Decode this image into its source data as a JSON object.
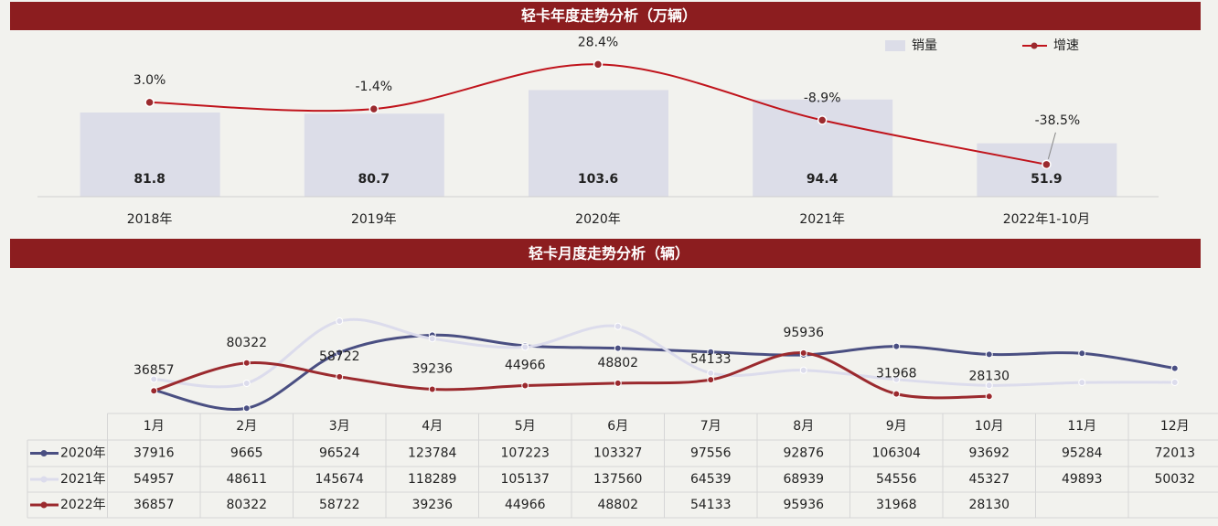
{
  "chart_data": [
    {
      "type": "bar",
      "title": "轻卡年度走势分析（万辆）",
      "categories": [
        "2018年",
        "2019年",
        "2020年",
        "2021年",
        "2022年1-10月"
      ],
      "series": [
        {
          "name": "销量",
          "type": "bar",
          "color": "#dcdde8",
          "values": [
            81.8,
            80.7,
            103.6,
            94.4,
            51.9
          ]
        },
        {
          "name": "增速",
          "type": "line",
          "axis": "y2",
          "color": "#c0141c",
          "values": [
            3.0,
            -1.4,
            28.4,
            -8.9,
            -38.5
          ],
          "value_labels": [
            "3.0%",
            "-1.4%",
            "28.4%",
            "-8.9%",
            "-38.5%"
          ]
        }
      ],
      "ylim": [
        0,
        160
      ],
      "y2lim": [
        -60,
        50
      ]
    },
    {
      "type": "line",
      "title": "轻卡月度走势分析（辆）",
      "categories": [
        "1月",
        "2月",
        "3月",
        "4月",
        "5月",
        "6月",
        "7月",
        "8月",
        "9月",
        "10月",
        "11月",
        "12月"
      ],
      "series": [
        {
          "name": "2020年",
          "color": "#4a4f82",
          "values": [
            37916,
            9665,
            96524,
            123784,
            107223,
            103327,
            97556,
            92876,
            106304,
            93692,
            95284,
            72013
          ]
        },
        {
          "name": "2021年",
          "color": "#dcdcec",
          "values": [
            54957,
            48611,
            145674,
            118289,
            105137,
            137560,
            64539,
            68939,
            54556,
            45327,
            49893,
            50032
          ]
        },
        {
          "name": "2022年",
          "color": "#9b2a2e",
          "values": [
            36857,
            80322,
            58722,
            39236,
            44966,
            48802,
            54133,
            95936,
            31968,
            28130,
            null,
            null
          ]
        }
      ],
      "labeled_series": 2,
      "ylim": [
        0,
        220000
      ]
    }
  ]
}
